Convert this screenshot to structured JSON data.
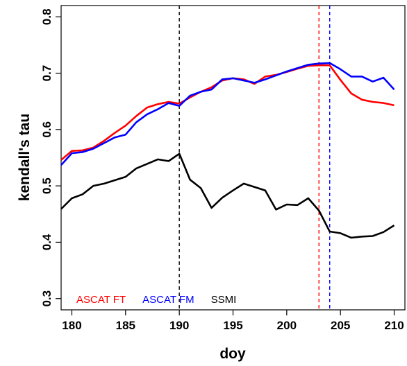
{
  "chart_data": {
    "type": "line",
    "title": "",
    "xlabel": "doy",
    "ylabel": "kendall's tau",
    "xlim": [
      179,
      211
    ],
    "ylim": [
      0.28,
      0.82
    ],
    "x_ticks": [
      180,
      185,
      190,
      195,
      200,
      205,
      210
    ],
    "y_ticks": [
      0.3,
      0.4,
      0.5,
      0.6,
      0.7,
      0.8
    ],
    "x_tick_labels": [
      "180",
      "185",
      "190",
      "195",
      "200",
      "205",
      "210"
    ],
    "y_tick_labels": [
      "0.3",
      "0.4",
      "0.5",
      "0.6",
      "0.7",
      "0.8"
    ],
    "grid": false,
    "legend_position": "bottom-left",
    "x": [
      179,
      180,
      181,
      182,
      183,
      184,
      185,
      186,
      187,
      188,
      189,
      190,
      191,
      192,
      193,
      194,
      195,
      196,
      197,
      198,
      199,
      200,
      201,
      202,
      203,
      204,
      205,
      206,
      207,
      208,
      209,
      210
    ],
    "series": [
      {
        "name": "ASCAT FT",
        "color": "#ff0000",
        "values": [
          0.546,
          0.562,
          0.563,
          0.568,
          0.58,
          0.594,
          0.607,
          0.624,
          0.639,
          0.645,
          0.649,
          0.646,
          0.657,
          0.667,
          0.675,
          0.687,
          0.691,
          0.689,
          0.681,
          0.694,
          0.697,
          0.702,
          0.708,
          0.713,
          0.714,
          0.714,
          0.688,
          0.664,
          0.653,
          0.649,
          0.647,
          0.643
        ]
      },
      {
        "name": "ASCAT FM",
        "color": "#0000ff",
        "values": [
          0.537,
          0.558,
          0.56,
          0.566,
          0.576,
          0.586,
          0.591,
          0.613,
          0.627,
          0.636,
          0.647,
          0.642,
          0.66,
          0.667,
          0.671,
          0.689,
          0.691,
          0.687,
          0.683,
          0.689,
          0.696,
          0.703,
          0.709,
          0.715,
          0.717,
          0.718,
          0.707,
          0.694,
          0.694,
          0.685,
          0.692,
          0.671
        ]
      },
      {
        "name": "SSMI",
        "color": "#000000",
        "values": [
          0.459,
          0.478,
          0.485,
          0.5,
          0.504,
          0.51,
          0.516,
          0.531,
          0.539,
          0.547,
          0.544,
          0.557,
          0.511,
          0.496,
          0.461,
          0.479,
          0.492,
          0.504,
          0.498,
          0.492,
          0.458,
          0.467,
          0.466,
          0.478,
          0.456,
          0.419,
          0.416,
          0.408,
          0.41,
          0.411,
          0.418,
          0.43
        ]
      }
    ],
    "vertical_lines": [
      {
        "x": 190,
        "color": "#000000"
      },
      {
        "x": 203,
        "color": "#ff0000"
      },
      {
        "x": 204,
        "color": "#0000ff"
      }
    ]
  }
}
